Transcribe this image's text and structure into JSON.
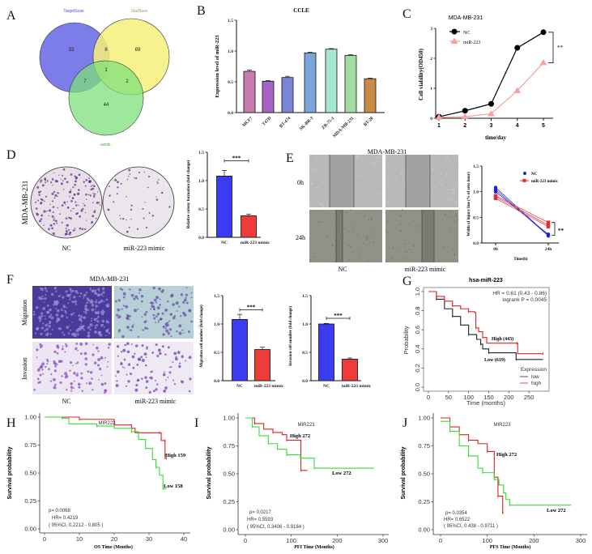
{
  "panel_labels": {
    "A": "A",
    "B": "B",
    "C": "C",
    "D": "D",
    "E": "E",
    "F": "F",
    "G": "G",
    "H": "H",
    "I": "I",
    "J": "J"
  },
  "panel_a": {
    "type": "venn",
    "sets": [
      {
        "name": "TargetScan",
        "color": "#6f6fe8",
        "label_color": "#4a4ad8"
      },
      {
        "name": "StarBase",
        "color": "#f5f07a",
        "label_color": "#a9a060"
      },
      {
        "name": "miRdb",
        "color": "#7de07a",
        "label_color": "#3aa03a"
      }
    ],
    "regions": {
      "targetscan_only": "33",
      "targetscan_starbase": "8",
      "starbase_only": "69",
      "all_three": "1",
      "targetscan_mirdb": "7",
      "starbase_mirdb": "2",
      "mirdb_only": "44"
    }
  },
  "panel_d": {
    "cell_line": "MDA-MB-231",
    "groups": [
      "NC",
      "miR-223 mimic"
    ]
  },
  "panel_e": {
    "title": "MDA-MB-231",
    "rows": [
      "0h",
      "24h"
    ],
    "groups": [
      "NC",
      "miR-223 mimic"
    ]
  },
  "panel_f": {
    "title": "MDA-MB-231",
    "rows": [
      "Migration",
      "Invasion"
    ],
    "groups": [
      "NC",
      "miR-223 mimic"
    ]
  },
  "chart_data": [
    {
      "id": "B",
      "type": "bar",
      "title": "CCLE",
      "ylabel": "Expression level of miR-223",
      "categories": [
        "MCF7",
        "T47D",
        "BT-474",
        "SK-BR-3",
        "ZR-75-1",
        "MDA-MB-231",
        "BT-20"
      ],
      "values": [
        0.67,
        0.51,
        0.57,
        0.97,
        1.03,
        0.93,
        0.55
      ],
      "errors": [
        0.02,
        0.01,
        0.02,
        0.01,
        0.01,
        0.01,
        0.01
      ],
      "colors": [
        "#c57db0",
        "#a764c4",
        "#7b85d4",
        "#7ba7da",
        "#a7e6d0",
        "#a3dca0",
        "#c98c47"
      ],
      "ylim": [
        0,
        1.5
      ],
      "yticks": [
        "0.0",
        "0.5",
        "1.0",
        "1.5"
      ]
    },
    {
      "id": "C",
      "type": "line",
      "title": "MDA-MB-231",
      "xlabel": "time/day",
      "ylabel": "Cell viability(OD450)",
      "x": [
        1,
        2,
        3,
        4,
        5
      ],
      "xticks": [
        "1",
        "2",
        "3",
        "4",
        "5"
      ],
      "ylim": [
        0,
        3
      ],
      "yticks": [
        "0",
        "1",
        "2",
        "3"
      ],
      "series": [
        {
          "name": "NC",
          "values": [
            0.05,
            0.25,
            0.48,
            2.35,
            2.87
          ],
          "color": "#000000",
          "marker": "circle"
        },
        {
          "name": "miR-223",
          "values": [
            0.03,
            0.05,
            0.15,
            0.92,
            1.85
          ],
          "color": "#f4a3a3",
          "marker": "triangle"
        }
      ],
      "significance": "**",
      "legend": "top-left"
    },
    {
      "id": "D",
      "type": "bar",
      "ylabel": "Relative colony formation (fold change)",
      "categories": [
        "NC",
        "miR-223 mimic"
      ],
      "values": [
        1.08,
        0.38
      ],
      "errors": [
        0.1,
        0.03
      ],
      "colors": [
        "#3b3bf0",
        "#f03b3b"
      ],
      "ylim": [
        0,
        1.5
      ],
      "yticks": [
        "0.0",
        "0.5",
        "1.0",
        "1.5"
      ],
      "significance": "***"
    },
    {
      "id": "E",
      "type": "scatter",
      "xlabel": "Time(h)",
      "ylabel": "Width of injury line (% of zero hour)",
      "xticks": [
        "0h",
        "24h"
      ],
      "ylim": [
        0,
        1.5
      ],
      "yticks": [
        "0.0",
        "0.5",
        "1.0",
        "1.5"
      ],
      "series": [
        {
          "name": "NC",
          "color": "#2020e0",
          "pairs": [
            [
              1.08,
              0.15
            ],
            [
              1.04,
              0.14
            ],
            [
              1.0,
              0.17
            ]
          ]
        },
        {
          "name": "miR-223 mimic",
          "color": "#e03030",
          "pairs": [
            [
              0.92,
              0.4
            ],
            [
              0.9,
              0.35
            ],
            [
              0.87,
              0.32
            ]
          ]
        }
      ],
      "significance": "**",
      "legend": "top-right"
    },
    {
      "id": "F1",
      "type": "bar",
      "ylabel": "Migration cell number (fold change)",
      "categories": [
        "NC",
        "miR-223 mimic"
      ],
      "values": [
        1.08,
        0.55
      ],
      "errors": [
        0.09,
        0.04
      ],
      "colors": [
        "#3b3bf0",
        "#f03b3b"
      ],
      "ylim": [
        0,
        1.5
      ],
      "yticks": [
        "0.0",
        "0.5",
        "1.0",
        "1.5"
      ],
      "significance": "***"
    },
    {
      "id": "F2",
      "type": "bar",
      "ylabel": "Invasion cell number (fold change)",
      "categories": [
        "NC",
        "miR-223 mimic"
      ],
      "values": [
        1.0,
        0.38
      ],
      "errors": [
        0.01,
        0.02
      ],
      "colors": [
        "#3b3bf0",
        "#f03b3b"
      ],
      "ylim": [
        0,
        1.5
      ],
      "yticks": [
        "0.0",
        "0.5",
        "1.0",
        "1.5"
      ],
      "significance": "***"
    },
    {
      "id": "G",
      "type": "line",
      "subtype": "kaplan-meier",
      "title": "hsa-miR-223",
      "xlabel": "Time (months)",
      "ylabel": "Probability",
      "xlim": [
        0,
        290
      ],
      "xticks": [
        "0",
        "50",
        "100",
        "150",
        "200",
        "250"
      ],
      "ylim": [
        0,
        1
      ],
      "yticks": [
        "0.0",
        "0.2",
        "0.4",
        "0.6",
        "0.8",
        "1.0"
      ],
      "stats": [
        "HR = 0.61 (0.43 - 0.86)",
        "logrank P = 0.0045"
      ],
      "legend_title": "Expression",
      "legend": "bottom-right",
      "series": [
        {
          "name": "low",
          "label": "Low (619)",
          "color": "#222222",
          "points": [
            [
              0,
              1
            ],
            [
              20,
              0.92
            ],
            [
              40,
              0.82
            ],
            [
              60,
              0.74
            ],
            [
              80,
              0.65
            ],
            [
              100,
              0.55
            ],
            [
              120,
              0.5
            ],
            [
              130,
              0.45
            ],
            [
              135,
              0.4
            ],
            [
              150,
              0.36
            ],
            [
              215,
              0.36
            ],
            [
              218,
              0.29
            ],
            [
              285,
              0.29
            ]
          ]
        },
        {
          "name": "high",
          "label": "High (443)",
          "color": "#e02020",
          "points": [
            [
              0,
              1
            ],
            [
              20,
              0.95
            ],
            [
              40,
              0.9
            ],
            [
              60,
              0.85
            ],
            [
              80,
              0.82
            ],
            [
              100,
              0.79
            ],
            [
              115,
              0.78
            ],
            [
              118,
              0.62
            ],
            [
              125,
              0.58
            ],
            [
              135,
              0.52
            ],
            [
              145,
              0.46
            ],
            [
              220,
              0.46
            ],
            [
              222,
              0.35
            ],
            [
              285,
              0.35
            ]
          ]
        }
      ]
    },
    {
      "id": "H",
      "type": "line",
      "subtype": "kaplan-meier",
      "title": "MIR223",
      "xlabel": "OS Time (Months)",
      "ylabel": "Survival probability",
      "xlim": [
        0,
        40
      ],
      "xticks": [
        "0",
        "10",
        "20",
        "30",
        "40"
      ],
      "ylim": [
        0,
        1
      ],
      "yticks": [
        "0.00",
        "0.25",
        "0.50",
        "0.75",
        "1.00"
      ],
      "stats": [
        "p= 0.0068",
        "HR= 0.4219",
        "( 95%CI, 0.2212 - 0.805 )"
      ],
      "series": [
        {
          "label": "High 159",
          "color": "#e02020",
          "points": [
            [
              0,
              1
            ],
            [
              10,
              0.98
            ],
            [
              20,
              0.93
            ],
            [
              25,
              0.9
            ],
            [
              26,
              0.86
            ],
            [
              33,
              0.86
            ],
            [
              33.5,
              0.79
            ],
            [
              34.5,
              0.79
            ],
            [
              34.6,
              0.63
            ],
            [
              35,
              0.63
            ]
          ]
        },
        {
          "label": "Low 158",
          "color": "#33dd33",
          "points": [
            [
              0,
              1
            ],
            [
              5,
              0.99
            ],
            [
              7,
              0.94
            ],
            [
              15,
              0.92
            ],
            [
              20,
              0.9
            ],
            [
              25,
              0.87
            ],
            [
              27,
              0.8
            ],
            [
              29,
              0.72
            ],
            [
              31,
              0.62
            ],
            [
              32,
              0.55
            ],
            [
              33,
              0.48
            ],
            [
              34,
              0.36
            ],
            [
              35,
              0.36
            ]
          ]
        }
      ]
    },
    {
      "id": "I",
      "type": "line",
      "subtype": "kaplan-meier",
      "title": "MIR223",
      "xlabel": "PFI Time (Months)",
      "ylabel": "Survival probability",
      "xlim": [
        0,
        300
      ],
      "xticks": [
        "0",
        "100",
        "200",
        "300"
      ],
      "ylim": [
        0,
        1
      ],
      "yticks": [
        "0.00",
        "0.25",
        "0.50",
        "0.75",
        "1.00"
      ],
      "stats": [
        "p= 0.0217",
        "HR= 0.5593",
        "( 95%CI, 0.3406 - 0.9184 )"
      ],
      "series": [
        {
          "label": "High 272",
          "color": "#e02020",
          "points": [
            [
              0,
              1
            ],
            [
              20,
              0.95
            ],
            [
              40,
              0.9
            ],
            [
              60,
              0.87
            ],
            [
              80,
              0.85
            ],
            [
              90,
              0.8
            ],
            [
              120,
              0.8
            ],
            [
              121,
              0.53
            ],
            [
              135,
              0.53
            ]
          ]
        },
        {
          "label": "Low 272",
          "color": "#33dd33",
          "points": [
            [
              0,
              1
            ],
            [
              15,
              0.92
            ],
            [
              30,
              0.84
            ],
            [
              50,
              0.77
            ],
            [
              70,
              0.72
            ],
            [
              90,
              0.67
            ],
            [
              110,
              0.67
            ],
            [
              120,
              0.64
            ],
            [
              148,
              0.64
            ],
            [
              150,
              0.55
            ],
            [
              280,
              0.55
            ]
          ]
        }
      ]
    },
    {
      "id": "J",
      "type": "line",
      "subtype": "kaplan-meier",
      "title": "MIR223",
      "xlabel": "PFS Time (Months)",
      "ylabel": "Survival probability",
      "xlim": [
        0,
        300
      ],
      "xticks": [
        "0",
        "100",
        "200",
        "300"
      ],
      "ylim": [
        0,
        1
      ],
      "yticks": [
        "0.00",
        "0.25",
        "0.50",
        "0.75",
        "1.00"
      ],
      "stats": [
        "p= 0.0354",
        "HR= 0.6522",
        "( 95%CI, 0.438 - 0.9711 )"
      ],
      "series": [
        {
          "label": "High 272",
          "color": "#e02020",
          "points": [
            [
              0,
              1
            ],
            [
              20,
              0.92
            ],
            [
              40,
              0.85
            ],
            [
              60,
              0.8
            ],
            [
              80,
              0.77
            ],
            [
              100,
              0.7
            ],
            [
              113,
              0.7
            ],
            [
              115,
              0.47
            ],
            [
              122,
              0.47
            ],
            [
              123,
              0.3
            ],
            [
              130,
              0.3
            ],
            [
              133,
              0.15
            ],
            [
              135,
              0.15
            ]
          ]
        },
        {
          "label": "Low 272",
          "color": "#33dd33",
          "points": [
            [
              0,
              0.97
            ],
            [
              20,
              0.88
            ],
            [
              40,
              0.75
            ],
            [
              60,
              0.66
            ],
            [
              80,
              0.55
            ],
            [
              90,
              0.51
            ],
            [
              110,
              0.51
            ],
            [
              115,
              0.45
            ],
            [
              125,
              0.4
            ],
            [
              135,
              0.33
            ],
            [
              140,
              0.27
            ],
            [
              148,
              0.22
            ],
            [
              280,
              0.22
            ]
          ]
        }
      ]
    }
  ]
}
